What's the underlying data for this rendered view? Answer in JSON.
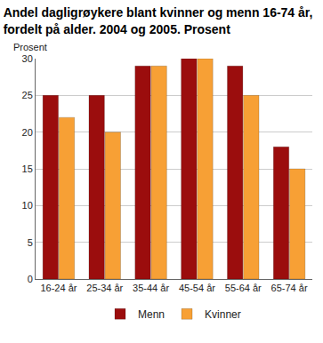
{
  "chart_data": {
    "type": "bar",
    "title": "Andel dagligrøykere blant kvinner og menn 16-74 år,\nfordelt på alder. 2004 og 2005. Prosent",
    "y_label": "Prosent",
    "categories": [
      "16-24 år",
      "25-34 år",
      "35-44 år",
      "45-54 år",
      "55-64 år",
      "65-74 år"
    ],
    "series": [
      {
        "name": "Menn",
        "color": "#9b0d0d",
        "values": [
          25,
          25,
          29,
          30,
          29,
          18
        ]
      },
      {
        "name": "Kvinner",
        "color": "#f7a035",
        "values": [
          22,
          20,
          29,
          30,
          25,
          15
        ]
      }
    ],
    "ylim": [
      0,
      30
    ],
    "yticks": [
      0,
      5,
      10,
      15,
      20,
      25,
      30
    ],
    "grid": true,
    "legend": "bottom"
  }
}
